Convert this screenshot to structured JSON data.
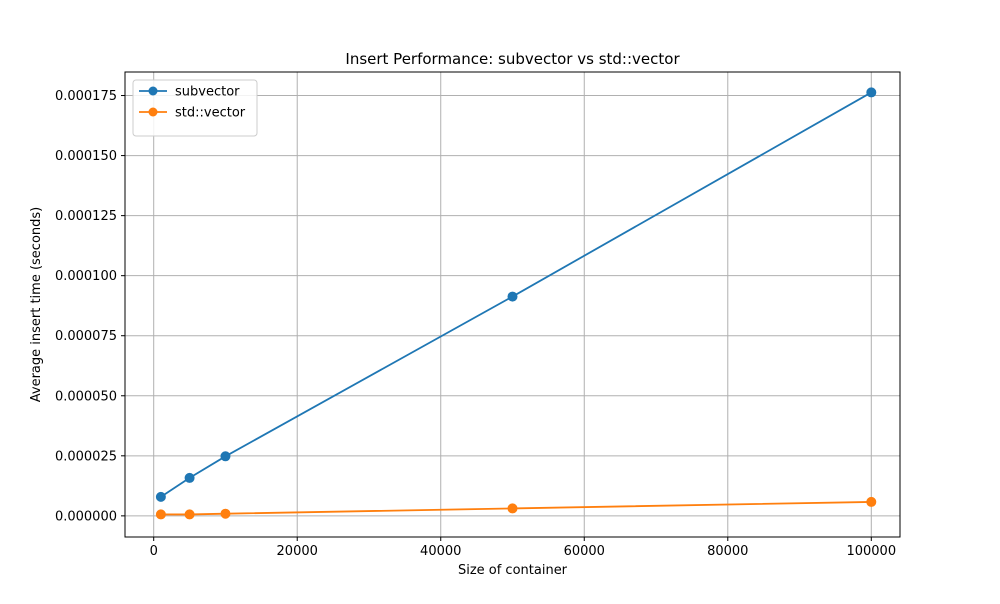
{
  "chart_data": {
    "type": "line",
    "title": "Insert Performance: subvector vs std::vector",
    "xlabel": "Size of container",
    "ylabel": "Average insert time (seconds)",
    "x": [
      1000,
      5000,
      10000,
      50000,
      100000
    ],
    "series": [
      {
        "name": "subvector",
        "color": "#1f77b4",
        "marker": "circle",
        "values": [
          7.9e-06,
          1.58e-05,
          2.48e-05,
          9.13e-05,
          0.0001763
        ]
      },
      {
        "name": "std::vector",
        "color": "#ff7f0e",
        "marker": "circle",
        "values": [
          6e-07,
          6e-07,
          9e-07,
          3.1e-06,
          5.8e-06
        ]
      }
    ],
    "xlim": [
      -4000,
      104000
    ],
    "ylim": [
      -8.8e-06,
      0.0001848
    ],
    "xticks": [
      0,
      20000,
      40000,
      60000,
      80000,
      100000
    ],
    "xtick_labels": [
      "0",
      "20000",
      "40000",
      "60000",
      "80000",
      "100000"
    ],
    "yticks": [
      0,
      2.5e-05,
      5e-05,
      7.5e-05,
      0.0001,
      0.000125,
      0.00015,
      0.000175
    ],
    "ytick_labels": [
      "0.000000",
      "0.000025",
      "0.000050",
      "0.000075",
      "0.000100",
      "0.000125",
      "0.000150",
      "0.000175"
    ],
    "grid": true,
    "legend": "upper left"
  }
}
